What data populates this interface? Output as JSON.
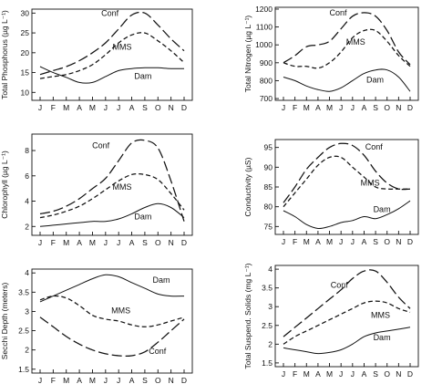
{
  "chart_data": [
    {
      "type": "line",
      "ylabel": "Total Phosphorus (µg L⁻¹)",
      "categories": [
        "J",
        "F",
        "M",
        "A",
        "M",
        "J",
        "J",
        "A",
        "S",
        "O",
        "N",
        "D"
      ],
      "yticks": [
        10,
        15,
        20,
        25,
        30
      ],
      "ylim": [
        8,
        31
      ],
      "series": [
        {
          "name": "Conf",
          "style": "long-dash",
          "values": [
            14.5,
            15.5,
            16.5,
            18,
            20,
            22.5,
            26,
            29.5,
            30,
            27,
            23.5,
            20.5
          ]
        },
        {
          "name": "MMS",
          "style": "short-dash",
          "values": [
            13.5,
            14,
            14.5,
            15.5,
            17,
            19.5,
            22.5,
            24.5,
            25,
            23,
            20.5,
            17.5
          ]
        },
        {
          "name": "Dam",
          "style": "solid",
          "values": [
            16.5,
            15,
            13.8,
            12.5,
            12.5,
            14,
            15.5,
            16,
            16.2,
            16.2,
            16,
            16
          ]
        }
      ]
    },
    {
      "type": "line",
      "ylabel": "Total Nitrogen (µg L⁻¹)",
      "categories": [
        "J",
        "F",
        "M",
        "A",
        "M",
        "J",
        "J",
        "A",
        "S",
        "O",
        "N",
        "D"
      ],
      "yticks": [
        700,
        800,
        900,
        1000,
        1100,
        1200
      ],
      "ylim": [
        690,
        1210
      ],
      "series": [
        {
          "name": "Conf",
          "style": "long-dash",
          "values": [
            900,
            940,
            990,
            1000,
            1020,
            1090,
            1160,
            1180,
            1160,
            1080,
            960,
            890
          ]
        },
        {
          "name": "MMS",
          "style": "short-dash",
          "values": [
            900,
            880,
            880,
            870,
            900,
            960,
            1040,
            1080,
            1080,
            1020,
            940,
            880
          ]
        },
        {
          "name": "Dam",
          "style": "solid",
          "values": [
            820,
            800,
            770,
            750,
            740,
            760,
            800,
            840,
            860,
            860,
            820,
            740
          ]
        }
      ]
    },
    {
      "type": "line",
      "ylabel": "Chlorophyll (µg L⁻¹)",
      "categories": [
        "J",
        "F",
        "M",
        "A",
        "M",
        "J",
        "J",
        "A",
        "S",
        "O",
        "N",
        "D"
      ],
      "yticks": [
        2,
        4,
        6,
        8
      ],
      "ylim": [
        1.3,
        9.3
      ],
      "series": [
        {
          "name": "Conf",
          "style": "long-dash",
          "values": [
            3,
            3.2,
            3.6,
            4.2,
            5,
            5.8,
            7.2,
            8.6,
            8.8,
            8.2,
            5.6,
            2.4
          ]
        },
        {
          "name": "MMS",
          "style": "short-dash",
          "values": [
            2.7,
            2.9,
            3.2,
            3.6,
            4.2,
            4.9,
            5.6,
            6.1,
            6.1,
            5.7,
            4.6,
            3.3
          ]
        },
        {
          "name": "Dam",
          "style": "solid",
          "values": [
            2,
            2.1,
            2.2,
            2.3,
            2.4,
            2.4,
            2.6,
            3,
            3.5,
            3.8,
            3.5,
            2.7
          ]
        }
      ]
    },
    {
      "type": "line",
      "ylabel": "Conductivity (µS)",
      "categories": [
        "J",
        "F",
        "M",
        "A",
        "M",
        "J",
        "J",
        "A",
        "S",
        "O",
        "N",
        "D"
      ],
      "yticks": [
        75,
        80,
        85,
        90,
        95
      ],
      "ylim": [
        73,
        97
      ],
      "series": [
        {
          "name": "Conf",
          "style": "long-dash",
          "values": [
            81,
            85,
            89.5,
            92.5,
            95,
            96,
            95.5,
            93,
            89,
            86,
            84.5,
            84.5
          ]
        },
        {
          "name": "MMS",
          "style": "short-dash",
          "values": [
            80,
            83.5,
            87,
            90.5,
            92.5,
            92.5,
            90,
            87.5,
            85,
            84.5,
            84.5,
            84.5
          ]
        },
        {
          "name": "Dam",
          "style": "solid",
          "values": [
            79,
            77.5,
            75.5,
            74.5,
            75,
            76,
            76.5,
            77.5,
            77,
            78,
            79.5,
            81.5
          ]
        }
      ]
    },
    {
      "type": "line",
      "ylabel": "Secchi Depth (meters)",
      "categories": [
        "J",
        "F",
        "M",
        "A",
        "M",
        "J",
        "J",
        "A",
        "S",
        "O",
        "N",
        "D"
      ],
      "yticks": [
        1.5,
        2.0,
        2.5,
        3.0,
        3.5,
        4.0
      ],
      "ylim": [
        1.4,
        4.1
      ],
      "series": [
        {
          "name": "Conf",
          "style": "long-dash",
          "values": [
            2.85,
            2.6,
            2.35,
            2.15,
            2.0,
            1.9,
            1.85,
            1.85,
            1.95,
            2.2,
            2.5,
            2.8
          ]
        },
        {
          "name": "MMS",
          "style": "short-dash",
          "values": [
            3.3,
            3.4,
            3.35,
            3.15,
            2.9,
            2.8,
            2.75,
            2.65,
            2.6,
            2.65,
            2.75,
            2.85
          ]
        },
        {
          "name": "Dam",
          "style": "solid",
          "values": [
            3.25,
            3.4,
            3.55,
            3.7,
            3.85,
            3.95,
            3.9,
            3.75,
            3.6,
            3.45,
            3.4,
            3.4
          ]
        }
      ]
    },
    {
      "type": "line",
      "ylabel": "Total Suspend. Solids (mg L⁻¹)",
      "categories": [
        "J",
        "F",
        "M",
        "A",
        "M",
        "J",
        "J",
        "A",
        "S",
        "O",
        "N",
        "D"
      ],
      "yticks": [
        1.5,
        2.0,
        2.5,
        3.0,
        3.5,
        4.0
      ],
      "ylim": [
        1.4,
        4.1
      ],
      "series": [
        {
          "name": "Conf",
          "style": "long-dash",
          "values": [
            2.2,
            2.45,
            2.7,
            2.95,
            3.2,
            3.45,
            3.75,
            3.95,
            3.95,
            3.65,
            3.25,
            2.95
          ]
        },
        {
          "name": "MMS",
          "style": "short-dash",
          "values": [
            2.0,
            2.2,
            2.35,
            2.5,
            2.65,
            2.8,
            2.95,
            3.1,
            3.15,
            3.1,
            2.95,
            2.85
          ]
        },
        {
          "name": "Dam",
          "style": "solid",
          "values": [
            1.9,
            1.85,
            1.8,
            1.75,
            1.78,
            1.85,
            2.0,
            2.2,
            2.3,
            2.35,
            2.4,
            2.45
          ]
        }
      ]
    }
  ]
}
